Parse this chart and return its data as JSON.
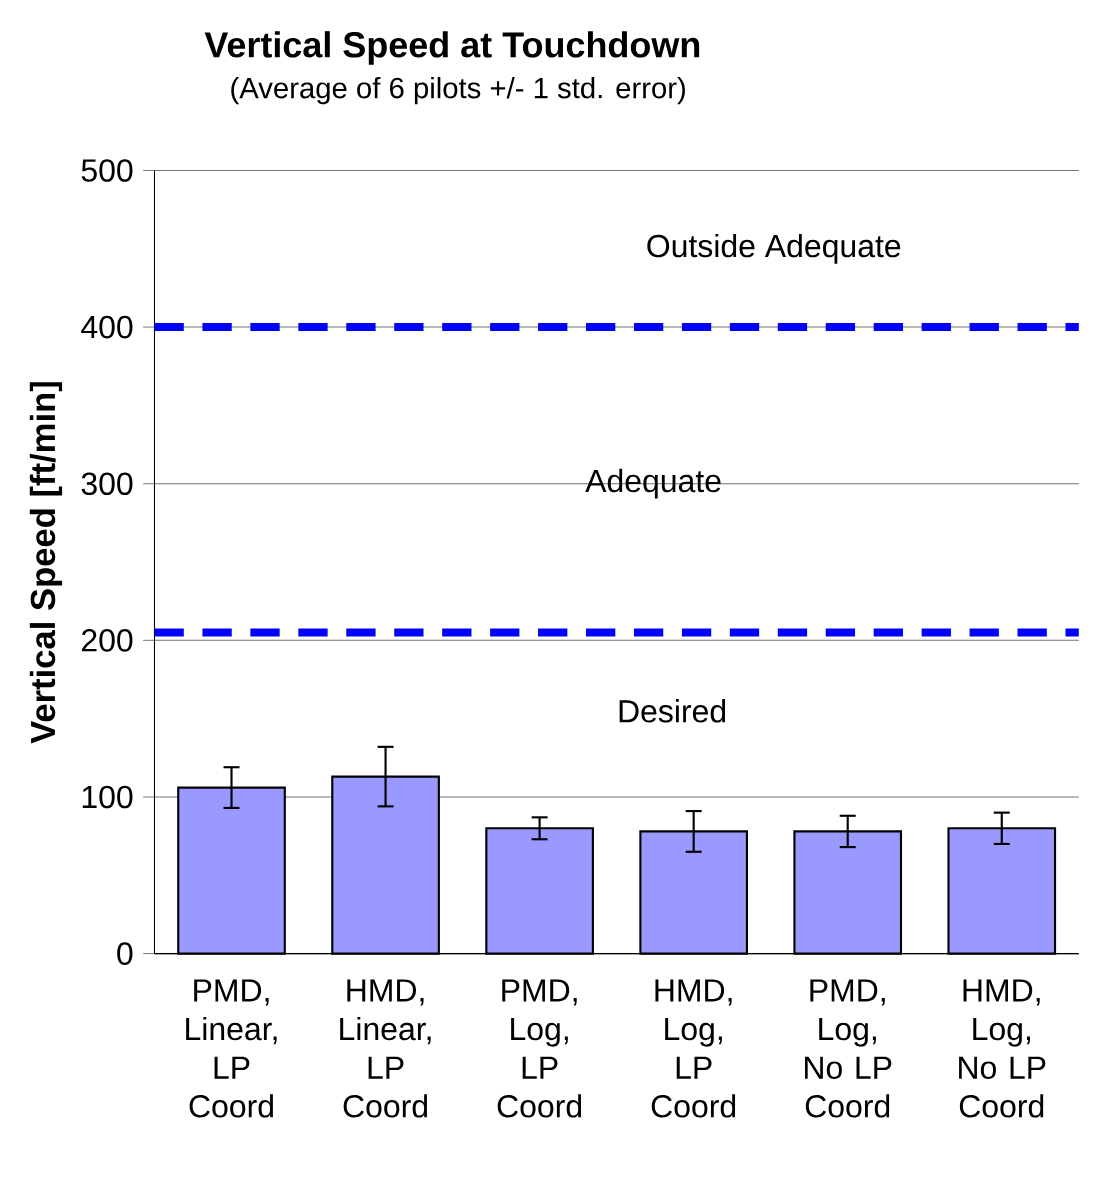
{
  "chart_data": {
    "type": "bar",
    "title": "Vertical Speed at Touchdown",
    "subtitle": "(Average of 6 pilots +/- 1 std. error)",
    "ylabel": "Vertical Speed [ft/min]",
    "categories": [
      "PMD, Linear, LP Coord",
      "HMD, Linear, LP Coord",
      "PMD, Log, LP Coord",
      "HMD, Log, LP Coord",
      "PMD, Log, No LP Coord",
      "HMD, Log, No LP Coord"
    ],
    "values": [
      106,
      113,
      80,
      78,
      78,
      80
    ],
    "errors": [
      13,
      19,
      7,
      13,
      10,
      10
    ],
    "color": "#9999ff",
    "ylim": [
      0,
      500
    ],
    "yticks": [
      0,
      100,
      200,
      300,
      400,
      500
    ],
    "grid": "y",
    "ref_lines": [
      {
        "axis": "y",
        "value": 400,
        "color": "#0000ff",
        "line_style": "dashed"
      },
      {
        "axis": "y",
        "value": 205,
        "color": "#0000ff",
        "line_style": "dashed"
      }
    ],
    "annotations": [
      "Outside Adequate",
      "Adequate",
      "Desired"
    ]
  }
}
